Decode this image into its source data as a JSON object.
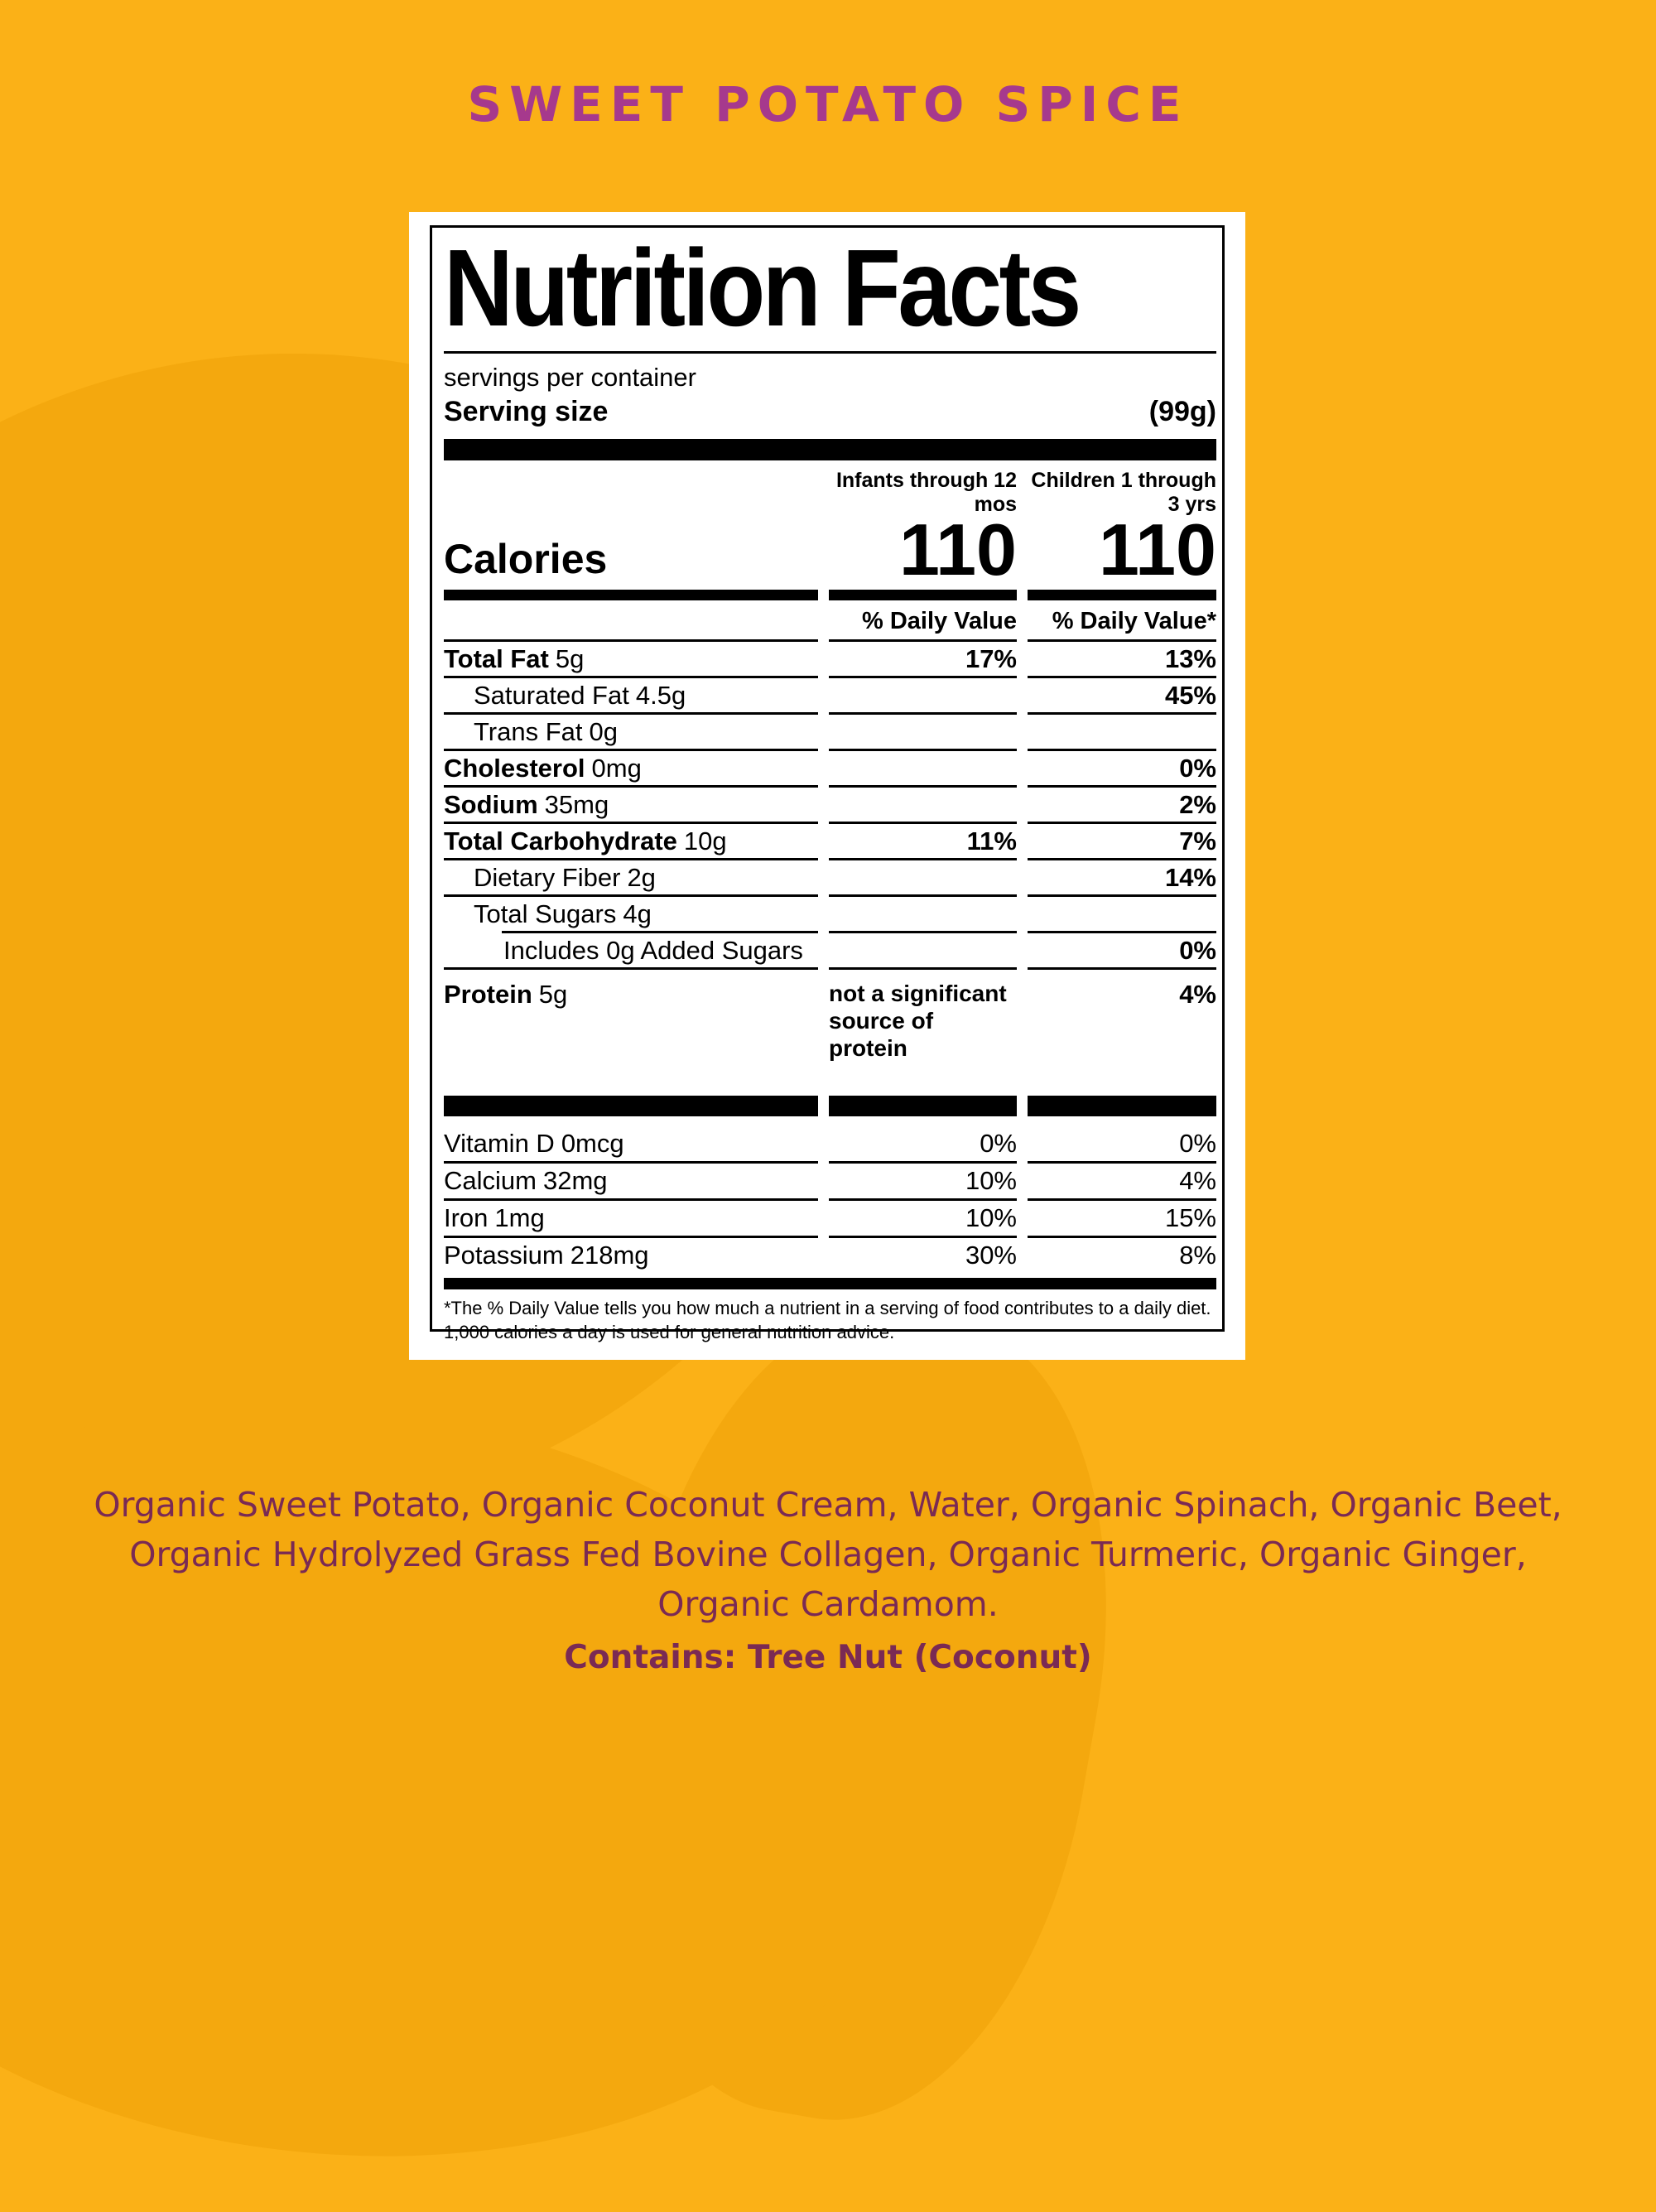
{
  "colors": {
    "background": "#FBB117",
    "background_shade": "#F4A80E",
    "title_text": "#A6398D",
    "ingredients_text": "#7A2A54",
    "label_background": "#FFFFFF",
    "label_text": "#000000"
  },
  "product": {
    "title": "SWEET POTATO SPICE"
  },
  "label": {
    "title": "Nutrition Facts",
    "servings_line": "servings per container",
    "serving_size_label": "Serving size",
    "serving_size_value": "(99g)",
    "columns": {
      "col1": {
        "line1": "Infants through 12",
        "line2": "mos"
      },
      "col2": {
        "line1": "Children 1 through",
        "line2": "3 yrs"
      }
    },
    "calories_label": "Calories",
    "calories_col1": "110",
    "calories_col2": "110",
    "dv_header_col1": "% Daily Value",
    "dv_header_col2": "% Daily Value*",
    "rows": [
      {
        "name": "Total Fat",
        "amount": "5g",
        "dv1": "17%",
        "dv2": "13%"
      },
      {
        "name": "Saturated Fat",
        "amount": "4.5g",
        "dv1": "",
        "dv2": "45%"
      },
      {
        "name": "Trans Fat",
        "amount": "0g",
        "dv1": "",
        "dv2": ""
      },
      {
        "name": "Cholesterol",
        "amount": "0mg",
        "dv1": "",
        "dv2": "0%"
      },
      {
        "name": "Sodium",
        "amount": "35mg",
        "dv1": "",
        "dv2": "2%"
      },
      {
        "name": "Total Carbohydrate",
        "amount": "10g",
        "dv1": "11%",
        "dv2": "7%"
      },
      {
        "name": "Dietary Fiber",
        "amount": "2g",
        "dv1": "",
        "dv2": "14%"
      },
      {
        "name": "Total Sugars",
        "amount": "4g",
        "dv1": "",
        "dv2": ""
      },
      {
        "name": "Includes 0g Added Sugars",
        "amount": "",
        "dv1": "",
        "dv2": "0%"
      },
      {
        "name": "Protein",
        "amount": "5g",
        "dv1": "not a significant source of protein",
        "dv2": "4%"
      }
    ],
    "micronutrients": [
      {
        "name": "Vitamin D",
        "amount": "0mcg",
        "dv1": "0%",
        "dv2": "0%"
      },
      {
        "name": "Calcium",
        "amount": "32mg",
        "dv1": "10%",
        "dv2": "4%"
      },
      {
        "name": "Iron",
        "amount": "1mg",
        "dv1": "10%",
        "dv2": "15%"
      },
      {
        "name": "Potassium",
        "amount": "218mg",
        "dv1": "30%",
        "dv2": "8%"
      }
    ],
    "footnote": "*The % Daily Value tells you how much a nutrient in a serving of food contributes to a daily diet. 1,000 calories a day is used for general nutrition advice."
  },
  "ingredients": {
    "text": "Organic Sweet Potato, Organic Coconut Cream, Water, Organic Spinach, Organic Beet, Organic Hydrolyzed Grass Fed Bovine Collagen, Organic Turmeric, Organic Ginger, Organic Cardamom.",
    "contains": "Contains: Tree Nut (Coconut)"
  }
}
